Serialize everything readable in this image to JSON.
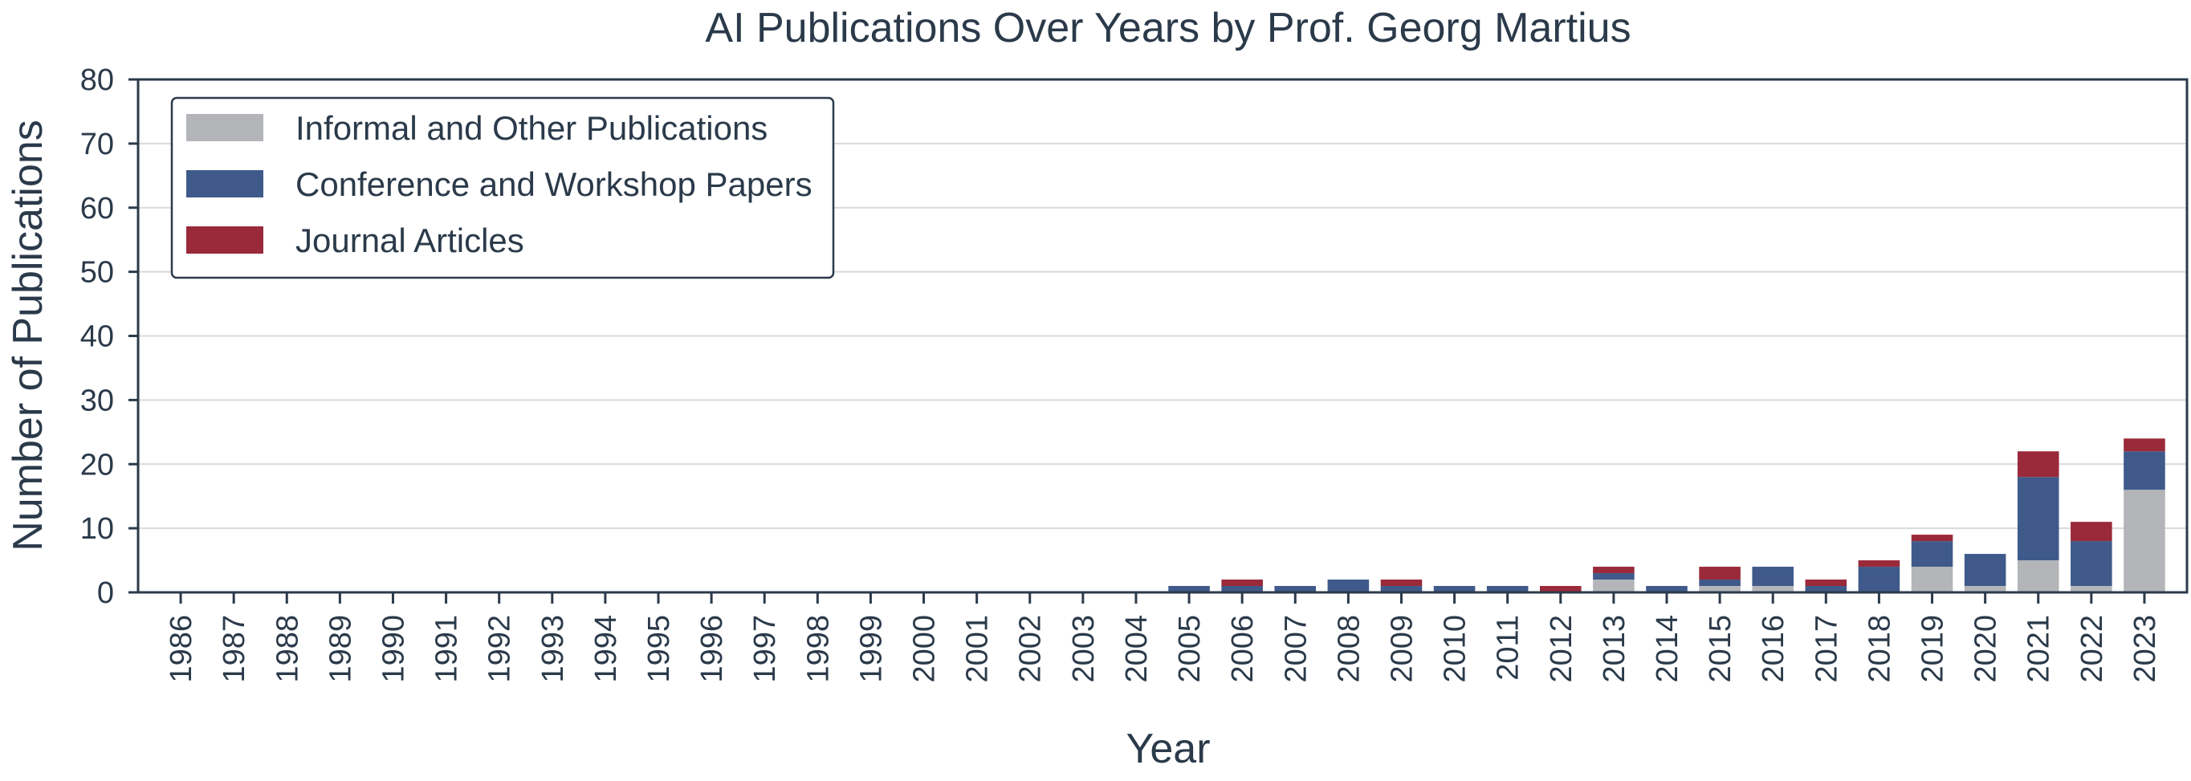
{
  "chart_data": {
    "type": "bar",
    "stacked": true,
    "title": "AI Publications Over Years by Prof. Georg Martius",
    "xlabel": "Year",
    "ylabel": "Number of Publications",
    "ylim": [
      0,
      80
    ],
    "yticks": [
      "0",
      "10",
      "20",
      "30",
      "40",
      "50",
      "60",
      "70",
      "80"
    ],
    "grid": true,
    "legend_position": "top-left",
    "categories": [
      "1986",
      "1987",
      "1988",
      "1989",
      "1990",
      "1991",
      "1992",
      "1993",
      "1994",
      "1995",
      "1996",
      "1997",
      "1998",
      "1999",
      "2000",
      "2001",
      "2002",
      "2003",
      "2004",
      "2005",
      "2006",
      "2007",
      "2008",
      "2009",
      "2010",
      "2011",
      "2012",
      "2013",
      "2014",
      "2015",
      "2016",
      "2017",
      "2018",
      "2019",
      "2020",
      "2021",
      "2022",
      "2023"
    ],
    "series": [
      {
        "name": "Informal and Other Publications",
        "color": "#b3b5b8",
        "values": [
          0,
          0,
          0,
          0,
          0,
          0,
          0,
          0,
          0,
          0,
          0,
          0,
          0,
          0,
          0,
          0,
          0,
          0,
          0,
          0,
          0,
          0,
          0,
          0,
          0,
          0,
          0,
          2,
          0,
          1,
          1,
          0,
          0,
          4,
          1,
          5,
          1,
          16
        ]
      },
      {
        "name": "Conference and Workshop Papers",
        "color": "#3f5a8a",
        "values": [
          0,
          0,
          0,
          0,
          0,
          0,
          0,
          0,
          0,
          0,
          0,
          0,
          0,
          0,
          0,
          0,
          0,
          0,
          0,
          1,
          1,
          1,
          2,
          1,
          1,
          1,
          0,
          1,
          1,
          1,
          3,
          1,
          4,
          4,
          5,
          13,
          7,
          6
        ]
      },
      {
        "name": "Journal Articles",
        "color": "#9a2a3a",
        "values": [
          0,
          0,
          0,
          0,
          0,
          0,
          0,
          0,
          0,
          0,
          0,
          0,
          0,
          0,
          0,
          0,
          0,
          0,
          0,
          0,
          1,
          0,
          0,
          1,
          0,
          0,
          1,
          1,
          0,
          2,
          0,
          1,
          1,
          1,
          0,
          4,
          3,
          2
        ]
      }
    ]
  }
}
